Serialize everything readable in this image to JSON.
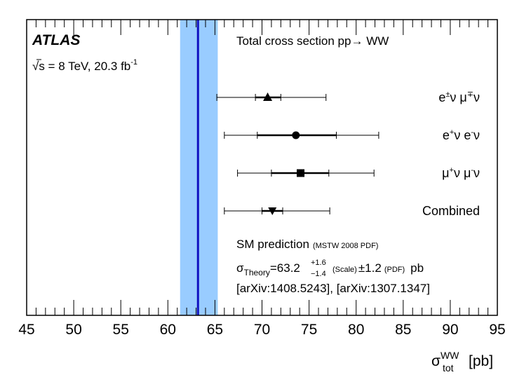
{
  "chart_data": {
    "type": "scatter",
    "title": "Total cross section pp→ WW",
    "experiment": "ATLAS",
    "energy_label": "√s = 8 TeV, 20.3 fb",
    "energy_label_sup": "-1",
    "xlabel": {
      "sigma": "σ",
      "sup": "WW",
      "sub": "tot",
      "unit": "[pb]"
    },
    "xlim": [
      45,
      95
    ],
    "x_ticks": [
      45,
      50,
      55,
      60,
      65,
      70,
      75,
      80,
      85,
      90,
      95
    ],
    "x_minor_step": 1,
    "grid": false,
    "prediction": {
      "central": 63.2,
      "band_low": 61.3,
      "band_high": 65.3,
      "line_color": "#1010c0",
      "band_color": "#99ccff"
    },
    "series": [
      {
        "name": "e±ν μ∓ν",
        "label_html": "e<tspan dy=\"-7\" font-size=\"11\">±</tspan><tspan dy=\"7\">ν μ</tspan><tspan dy=\"-7\" font-size=\"11\">∓</tspan><tspan dy=\"7\">ν</tspan>",
        "marker": "triangle-up",
        "value": 70.6,
        "stat_low": 69.3,
        "stat_high": 72.0,
        "total_low": 65.2,
        "total_high": 76.8
      },
      {
        "name": "e+ν e-ν",
        "label_html": "e<tspan dy=\"-7\" font-size=\"11\">+</tspan><tspan dy=\"7\">ν e</tspan><tspan dy=\"-7\" font-size=\"11\">-</tspan><tspan dy=\"7\">ν</tspan>",
        "marker": "circle",
        "value": 73.6,
        "stat_low": 69.5,
        "stat_high": 77.9,
        "total_low": 66.0,
        "total_high": 82.4
      },
      {
        "name": "μ+ν μ-ν",
        "label_html": "μ<tspan dy=\"-7\" font-size=\"11\">+</tspan><tspan dy=\"7\">ν μ</tspan><tspan dy=\"-7\" font-size=\"11\">-</tspan><tspan dy=\"7\">ν</tspan>",
        "marker": "square",
        "value": 74.1,
        "stat_low": 71.0,
        "stat_high": 77.1,
        "total_low": 67.4,
        "total_high": 81.9
      },
      {
        "name": "Combined",
        "label_html": "Combined",
        "marker": "triangle-down",
        "value": 71.1,
        "stat_low": 70.0,
        "stat_high": 72.2,
        "total_low": 66.0,
        "total_high": 77.2
      }
    ],
    "sm_text": {
      "line1_main": "SM prediction",
      "line1_note": "(MSTW 2008 PDF)",
      "sigma": "σ",
      "theory_sub": "Theory",
      "value": "=63.2",
      "up": "+1.6",
      "down": "−1.4",
      "scale_note": "(Scale)",
      "pdf_value": "±1.2",
      "pdf_note": "(PDF)",
      "unit": "pb",
      "refs": "[arXiv:1408.5243], [arXiv:1307.1347]"
    }
  }
}
